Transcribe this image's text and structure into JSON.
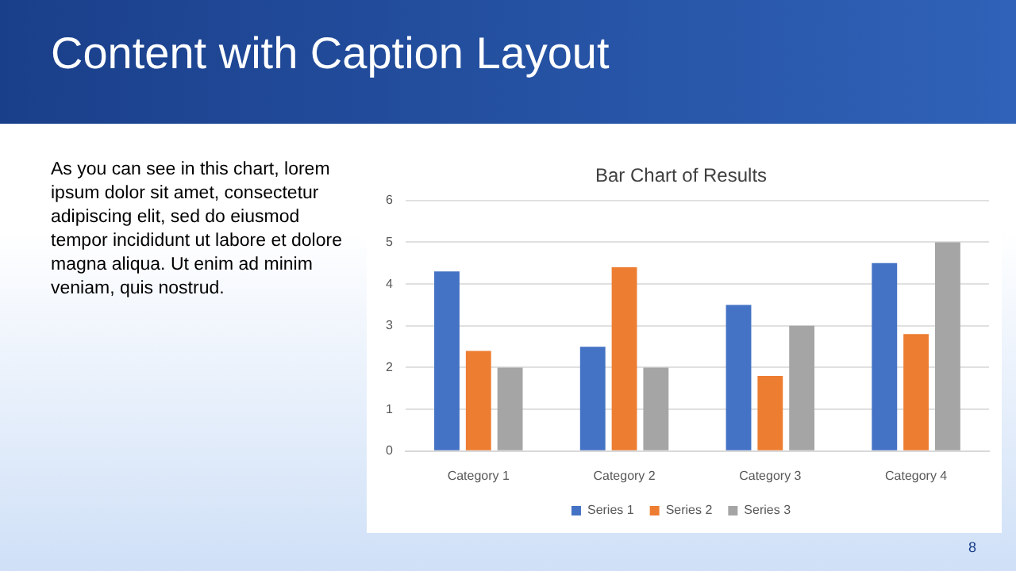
{
  "chart_data": {
    "type": "bar",
    "title": "Bar Chart of Results",
    "categories": [
      "Category 1",
      "Category 2",
      "Category 3",
      "Category 4"
    ],
    "series": [
      {
        "name": "Series 1",
        "color": "#4472c4",
        "values": [
          4.3,
          2.5,
          3.5,
          4.5
        ]
      },
      {
        "name": "Series 2",
        "color": "#ed7d31",
        "values": [
          2.4,
          4.4,
          1.8,
          2.8
        ]
      },
      {
        "name": "Series 3",
        "color": "#a5a5a5",
        "values": [
          2,
          2,
          3,
          5
        ]
      }
    ],
    "ylim": [
      0,
      6
    ],
    "yticks": [
      0,
      1,
      2,
      3,
      4,
      5,
      6
    ],
    "grid": "y",
    "legend": "bottom",
    "annotations": [
      "Content with Caption Layout",
      "As you can see in this chart, lorem ipsum dolor sit amet, consectetur adipiscing elit, sed do eiusmod tempor incididunt ut labore et dolore magna aliqua. Ut enim ad minim veniam, quis nostrud.",
      "8"
    ]
  }
}
